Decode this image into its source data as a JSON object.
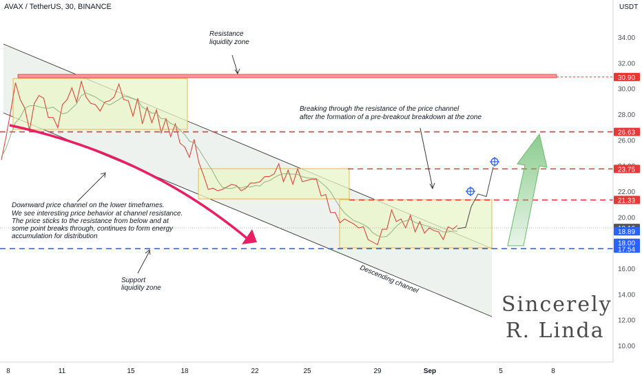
{
  "header": {
    "title": "AVAX / TetherUS, 30, BINANCE",
    "unit": "USDT"
  },
  "chart_data": {
    "type": "line",
    "symbol": "AVAX / TetherUS",
    "interval": "30",
    "exchange": "BINANCE",
    "y_ticks": [
      "34.00",
      "32.00",
      "30.00",
      "28.00",
      "26.00",
      "24.00",
      "22.00",
      "20.00",
      "18.00",
      "16.00",
      "14.00",
      "12.00",
      "10.00"
    ],
    "x_ticks": [
      "8",
      "11",
      "15",
      "18",
      "22",
      "25",
      "29",
      "Sep",
      "5",
      "8"
    ],
    "price_levels": [
      {
        "price": 30.9,
        "label": "30.90",
        "style": "dotted",
        "color": "#e53935"
      },
      {
        "price": 26.63,
        "label": "26.63",
        "style": "dashed",
        "color": "#e53935"
      },
      {
        "price": 23.75,
        "label": "23.75",
        "style": "dashed",
        "color": "#e53935"
      },
      {
        "price": 21.33,
        "label": "21.33",
        "style": "dashed",
        "color": "#e53935"
      },
      {
        "price": 17.54,
        "label": "17.54",
        "style": "dashed",
        "color": "#2962ff"
      }
    ],
    "price_tags": [
      {
        "price": 19.16,
        "label": "19.16",
        "color": "#555555"
      },
      {
        "price": 18.89,
        "label": "18.89",
        "color": "#2962ff"
      },
      {
        "price": 18.0,
        "label": "18.00",
        "color": "#2962ff"
      }
    ],
    "series": [
      {
        "values": [
          24.7,
          26.0,
          28.5,
          30.2,
          29.4,
          28.2,
          27.0,
          28.6,
          29.7,
          29.0,
          28.0,
          27.5,
          27.2,
          28.5,
          29.4,
          29.8,
          29.2,
          30.3,
          29.6,
          28.6,
          29.0,
          28.0,
          29.2,
          28.8,
          29.6,
          30.1,
          29.4,
          28.8,
          28.1,
          29.0,
          27.5,
          28.3,
          27.6,
          28.1,
          26.8,
          27.4,
          26.5,
          27.0,
          26.0,
          25.2,
          24.9,
          25.8,
          24.5,
          23.0,
          22.4,
          22.0,
          22.3,
          21.9,
          22.6,
          22.3,
          22.7,
          21.8,
          22.5,
          22.4,
          22.9,
          22.5,
          23.4,
          22.9,
          23.6,
          23.9,
          23.0,
          23.4,
          22.8,
          23.5,
          23.0,
          22.6,
          23.2,
          22.7,
          21.9,
          21.5,
          20.6,
          20.1,
          19.8,
          19.6,
          19.9,
          19.2,
          19.4,
          19.0,
          18.5,
          17.8,
          18.1,
          18.8,
          19.3,
          20.3,
          19.9,
          19.6,
          19.4,
          19.9,
          19.1,
          19.4,
          19.0,
          18.9,
          19.2,
          18.6,
          18.5,
          19.0,
          19.3,
          19.1
        ],
        "color": "#e0453a"
      }
    ],
    "projection": [
      19.1,
      19.2,
      20.8,
      21.8,
      21.6,
      23.9
    ],
    "zones": [
      {
        "from": 26.5,
        "to": 30.6
      },
      {
        "from": 21.3,
        "to": 23.8
      },
      {
        "from": 17.5,
        "to": 21.3
      }
    ],
    "annotations": [
      {
        "text": [
          "Resistance",
          "liquidity zone"
        ]
      },
      {
        "text": [
          "Breaking through the resistance of the price channel",
          "after the formation of a pre-breakout breakdown at the zone"
        ]
      },
      {
        "text": [
          "Downward price channel on the lower timeframes.",
          "We see interesting price behavior at channel resistance.",
          "The price sticks to the resistance from below and at",
          "some point breaks through, continues to form energy",
          "accumulation for distribution"
        ]
      },
      {
        "text": [
          "Support",
          "liquidity zone"
        ]
      },
      {
        "text": [
          "Descending channel"
        ]
      }
    ],
    "signature": [
      "Sincerely",
      "R. Linda"
    ]
  }
}
